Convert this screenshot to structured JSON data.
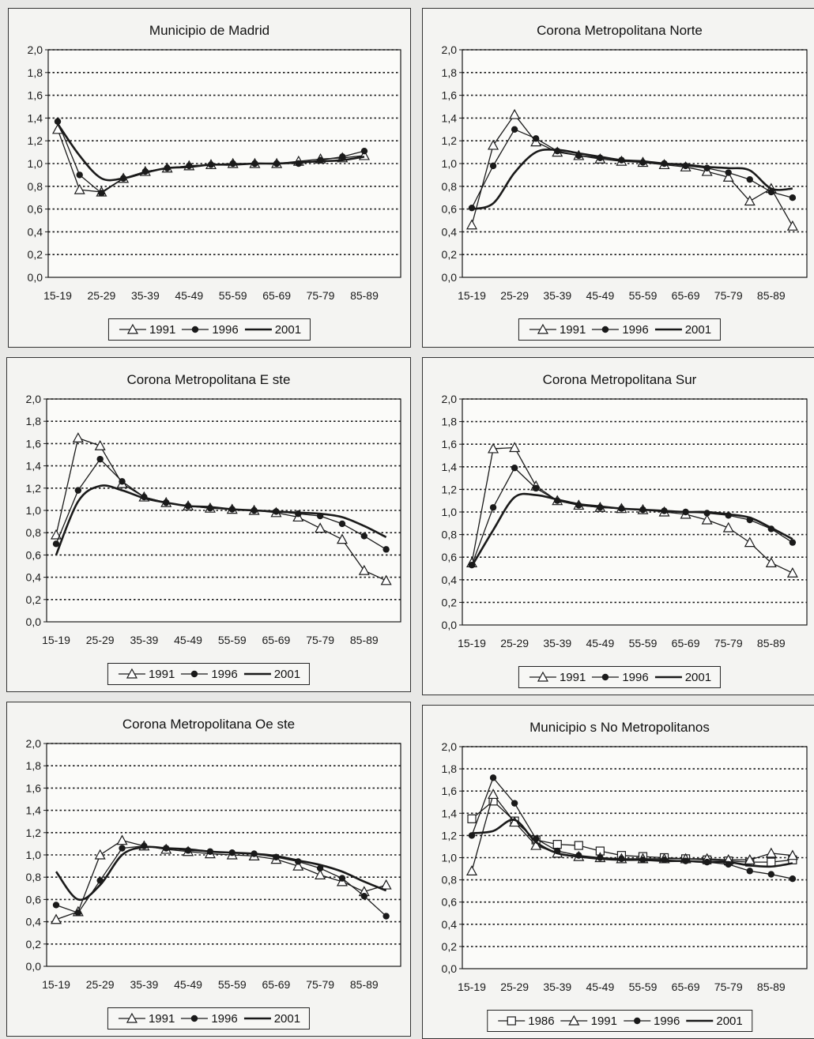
{
  "chart_data": [
    {
      "type": "line",
      "title": "Municipio de Madrid",
      "x_ticks": [
        "15-19",
        "25-29",
        "35-39",
        "45-49",
        "55-59",
        "65-69",
        "75-79",
        "85-89"
      ],
      "ylim": [
        0,
        2
      ],
      "y_ticks": [
        "0,0",
        "0,2",
        "0,4",
        "0,6",
        "0,8",
        "1,0",
        "1,2",
        "1,4",
        "1,6",
        "1,8",
        "2,0"
      ],
      "grid": "horizontal dotted",
      "legend": "bottom",
      "series": [
        {
          "name": "1991",
          "marker": "triangle",
          "values": [
            1.3,
            0.77,
            0.75,
            0.87,
            0.93,
            0.96,
            0.98,
            0.99,
            1.0,
            1.0,
            1.0,
            1.02,
            1.04,
            1.05,
            1.07
          ]
        },
        {
          "name": "1996",
          "marker": "circle",
          "values": [
            1.37,
            0.9,
            0.74,
            0.87,
            0.93,
            0.96,
            0.98,
            0.99,
            1.0,
            1.0,
            1.0,
            1.0,
            1.03,
            1.06,
            1.11
          ]
        },
        {
          "name": "2001",
          "marker": "none",
          "values": [
            1.35,
            1.07,
            0.87,
            0.87,
            0.92,
            0.96,
            0.97,
            0.99,
            0.99,
            1.0,
            1.0,
            1.01,
            1.02,
            1.03,
            1.06
          ]
        }
      ]
    },
    {
      "type": "line",
      "title": "Corona Metropolitana Norte",
      "x_ticks": [
        "15-19",
        "25-29",
        "35-39",
        "45-49",
        "55-59",
        "65-69",
        "75-79",
        "85-89"
      ],
      "ylim": [
        0,
        2
      ],
      "y_ticks": [
        "0,0",
        "0,2",
        "0,4",
        "0,6",
        "0,8",
        "1,0",
        "1,2",
        "1,4",
        "1,6",
        "1,8",
        "2,0"
      ],
      "grid": "horizontal dotted",
      "legend": "bottom",
      "series": [
        {
          "name": "1991",
          "marker": "triangle",
          "values": [
            0.46,
            1.16,
            1.43,
            1.19,
            1.1,
            1.07,
            1.04,
            1.02,
            1.01,
            0.99,
            0.97,
            0.93,
            0.88,
            0.67,
            0.78,
            0.45
          ]
        },
        {
          "name": "1996",
          "marker": "circle",
          "values": [
            0.61,
            0.98,
            1.3,
            1.22,
            1.11,
            1.07,
            1.05,
            1.03,
            1.01,
            1.0,
            0.98,
            0.96,
            0.92,
            0.86,
            0.75,
            0.7
          ]
        },
        {
          "name": "2001",
          "marker": "none",
          "values": [
            0.6,
            0.65,
            0.92,
            1.1,
            1.12,
            1.09,
            1.06,
            1.03,
            1.02,
            1.0,
            0.99,
            0.97,
            0.96,
            0.94,
            0.78,
            0.78
          ]
        }
      ]
    },
    {
      "type": "line",
      "title": "Corona Metropolitana E   ste",
      "x_ticks": [
        "15-19",
        "25-29",
        "35-39",
        "45-49",
        "55-59",
        "65-69",
        "75-79",
        "85-89"
      ],
      "ylim": [
        0,
        2
      ],
      "y_ticks": [
        "0,0",
        "0,2",
        "0,4",
        "0,6",
        "0,8",
        "1,0",
        "1,2",
        "1,4",
        "1,6",
        "1,8",
        "2,0"
      ],
      "grid": "horizontal dotted",
      "legend": "bottom",
      "series": [
        {
          "name": "1991",
          "marker": "triangle",
          "values": [
            0.78,
            1.65,
            1.58,
            1.24,
            1.12,
            1.07,
            1.04,
            1.02,
            1.01,
            1.0,
            0.98,
            0.94,
            0.84,
            0.74,
            0.46,
            0.37
          ]
        },
        {
          "name": "1996",
          "marker": "circle",
          "values": [
            0.7,
            1.18,
            1.46,
            1.26,
            1.12,
            1.07,
            1.04,
            1.02,
            1.01,
            1.0,
            0.99,
            0.97,
            0.95,
            0.88,
            0.77,
            0.65
          ]
        },
        {
          "name": "2001",
          "marker": "none",
          "values": [
            0.6,
            1.08,
            1.22,
            1.18,
            1.11,
            1.07,
            1.04,
            1.03,
            1.01,
            1.0,
            0.99,
            0.98,
            0.97,
            0.94,
            0.86,
            0.76
          ]
        }
      ]
    },
    {
      "type": "line",
      "title": "Corona Metropolitana Sur",
      "x_ticks": [
        "15-19",
        "25-29",
        "35-39",
        "45-49",
        "55-59",
        "65-69",
        "75-79",
        "85-89"
      ],
      "ylim": [
        0,
        2
      ],
      "y_ticks": [
        "0,0",
        "0,2",
        "0,4",
        "0,6",
        "0,8",
        "1,0",
        "1,2",
        "1,4",
        "1,6",
        "1,8",
        "2,0"
      ],
      "grid": "horizontal dotted",
      "legend": "bottom",
      "series": [
        {
          "name": "1991",
          "marker": "triangle",
          "values": [
            0.55,
            1.56,
            1.57,
            1.23,
            1.1,
            1.06,
            1.04,
            1.03,
            1.02,
            1.0,
            0.98,
            0.93,
            0.86,
            0.73,
            0.55,
            0.46
          ]
        },
        {
          "name": "1996",
          "marker": "circle",
          "values": [
            0.53,
            1.04,
            1.39,
            1.21,
            1.1,
            1.06,
            1.04,
            1.03,
            1.02,
            1.01,
            1.0,
            0.99,
            0.97,
            0.93,
            0.85,
            0.73
          ]
        },
        {
          "name": "2001",
          "marker": "none",
          "values": [
            0.52,
            0.84,
            1.13,
            1.15,
            1.11,
            1.07,
            1.05,
            1.03,
            1.02,
            1.01,
            1.0,
            1.0,
            0.98,
            0.95,
            0.86,
            0.76
          ]
        }
      ]
    },
    {
      "type": "line",
      "title": "Corona Metropolitana Oe   ste",
      "x_ticks": [
        "15-19",
        "25-29",
        "35-39",
        "45-49",
        "55-59",
        "65-69",
        "75-79",
        "85-89"
      ],
      "ylim": [
        0,
        2
      ],
      "y_ticks": [
        "0,0",
        "0,2",
        "0,4",
        "0,6",
        "0,8",
        "1,0",
        "1,2",
        "1,4",
        "1,6",
        "1,8",
        "2,0"
      ],
      "grid": "horizontal dotted",
      "legend": "bottom",
      "series": [
        {
          "name": "1991",
          "marker": "triangle",
          "values": [
            0.42,
            0.49,
            1.0,
            1.13,
            1.08,
            1.05,
            1.03,
            1.01,
            1.0,
            0.99,
            0.96,
            0.9,
            0.82,
            0.76,
            0.67,
            0.73
          ]
        },
        {
          "name": "1996",
          "marker": "circle",
          "values": [
            0.55,
            0.48,
            0.77,
            1.06,
            1.08,
            1.06,
            1.04,
            1.03,
            1.02,
            1.01,
            0.98,
            0.94,
            0.88,
            0.79,
            0.63,
            0.45
          ]
        },
        {
          "name": "2001",
          "marker": "none",
          "values": [
            0.85,
            0.6,
            0.73,
            1.0,
            1.07,
            1.06,
            1.05,
            1.03,
            1.02,
            1.01,
            0.99,
            0.95,
            0.91,
            0.85,
            0.76,
            0.68
          ]
        }
      ]
    },
    {
      "type": "line",
      "title": "Municipio   s No Metropolitanos",
      "x_ticks": [
        "15-19",
        "25-29",
        "35-39",
        "45-49",
        "55-59",
        "65-69",
        "75-79",
        "85-89"
      ],
      "ylim": [
        0,
        2
      ],
      "y_ticks": [
        "0,0",
        "0,2",
        "0,4",
        "0,6",
        "0,8",
        "1,0",
        "1,2",
        "1,4",
        "1,6",
        "1,8",
        "2,0"
      ],
      "grid": "horizontal dotted",
      "legend": "bottom",
      "series": [
        {
          "name": "1986",
          "marker": "square",
          "values": [
            1.35,
            1.51,
            1.33,
            1.16,
            1.12,
            1.11,
            1.06,
            1.02,
            1.01,
            1.0,
            0.99,
            0.98,
            0.97,
            0.96,
            0.96,
            0.98
          ]
        },
        {
          "name": "1991",
          "marker": "triangle",
          "values": [
            0.88,
            1.57,
            1.32,
            1.11,
            1.04,
            1.01,
            1.0,
            0.99,
            0.99,
            0.99,
            0.99,
            0.99,
            0.98,
            0.98,
            1.04,
            1.02
          ]
        },
        {
          "name": "1996",
          "marker": "circle",
          "values": [
            1.2,
            1.72,
            1.49,
            1.17,
            1.06,
            1.02,
            1.0,
            0.99,
            0.98,
            0.98,
            0.97,
            0.96,
            0.94,
            0.88,
            0.85,
            0.81
          ]
        },
        {
          "name": "2001",
          "marker": "none",
          "values": [
            1.22,
            1.24,
            1.34,
            1.14,
            1.04,
            1.01,
            0.99,
            0.98,
            0.98,
            0.97,
            0.97,
            0.96,
            0.96,
            0.93,
            0.92,
            0.95
          ]
        }
      ]
    }
  ]
}
